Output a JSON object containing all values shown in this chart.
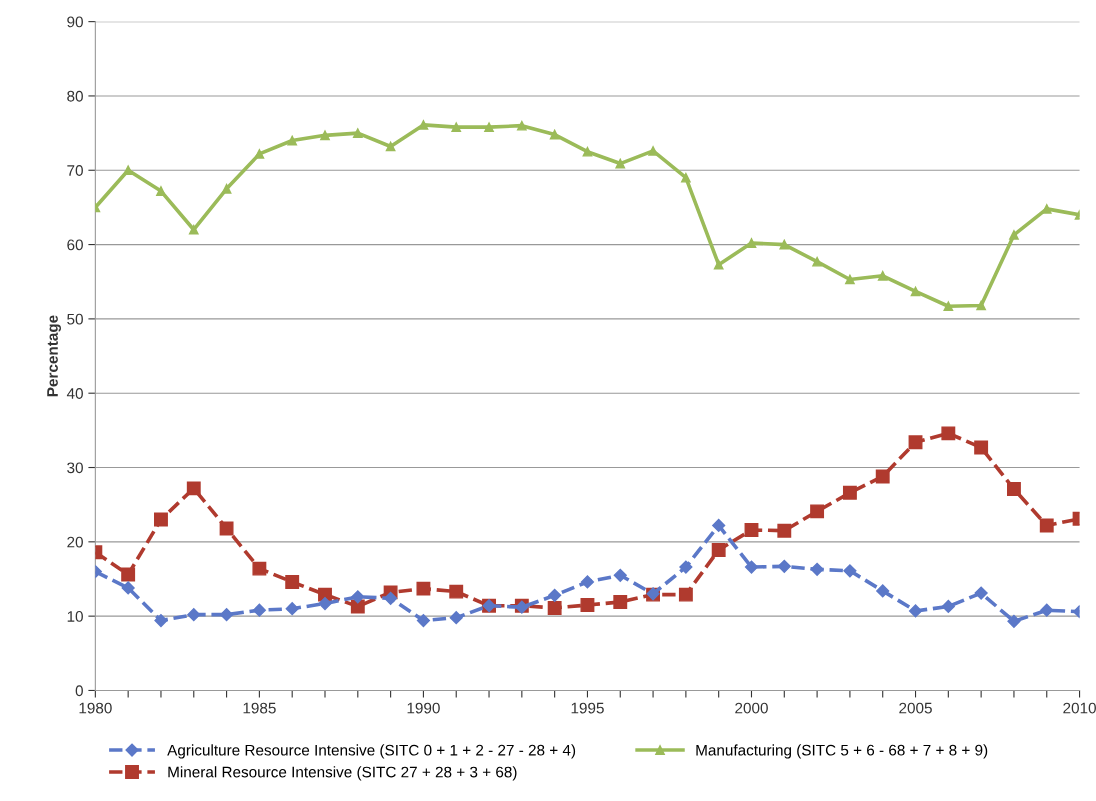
{
  "chart_data": {
    "type": "line",
    "ylabel": "Percentage",
    "x": [
      1980,
      1981,
      1982,
      1983,
      1984,
      1985,
      1986,
      1987,
      1988,
      1989,
      1990,
      1991,
      1992,
      1993,
      1994,
      1995,
      1996,
      1997,
      1998,
      1999,
      2000,
      2001,
      2002,
      2003,
      2004,
      2005,
      2006,
      2007,
      2008,
      2009,
      2010
    ],
    "series": [
      {
        "name": "Agriculture Resource Intensive (SITC 0 + 1 + 2 - 27 - 28 + 4)",
        "color": "#5b78c8",
        "marker": "diamond",
        "line_style": "dashed",
        "values": [
          16,
          13.8,
          9.4,
          10.2,
          10.2,
          10.8,
          11,
          11.7,
          12.6,
          12.4,
          9.4,
          9.8,
          11.4,
          11.2,
          12.8,
          14.6,
          15.5,
          13,
          16.6,
          22.2,
          16.6,
          16.7,
          16.3,
          16.1,
          13.4,
          10.7,
          11.3,
          13.1,
          9.3,
          10.8,
          10.6
        ]
      },
      {
        "name": "Mineral Resource Intensive (SITC 27 + 28 + 3 + 68)",
        "color": "#b03a2e",
        "marker": "square",
        "line_style": "dashed",
        "values": [
          18.6,
          15.6,
          23,
          27.2,
          21.8,
          16.4,
          14.6,
          12.9,
          11.3,
          13.2,
          13.7,
          13.3,
          11.4,
          11.4,
          11.1,
          11.5,
          11.9,
          12.9,
          12.9,
          18.9,
          21.6,
          21.5,
          24.1,
          26.6,
          28.8,
          33.4,
          34.6,
          32.7,
          27.1,
          22.2,
          23.1
        ]
      },
      {
        "name": "Manufacturing (SITC 5 + 6 - 68 + 7 + 8 + 9)",
        "color": "#9bbb59",
        "marker": "triangle",
        "line_style": "solid",
        "values": [
          65,
          70,
          67.2,
          62,
          67.5,
          72.2,
          74,
          74.7,
          75,
          73.2,
          76.1,
          75.8,
          75.8,
          76,
          74.8,
          72.5,
          70.9,
          72.6,
          69,
          57.3,
          60.2,
          60,
          57.7,
          55.3,
          55.8,
          53.7,
          51.7,
          51.8,
          61.3,
          64.8,
          64
        ]
      }
    ],
    "xlim": [
      1980,
      2010
    ],
    "xticks": [
      1980,
      {
        "value": 1981,
        "label": null
      },
      {
        "value": 1982,
        "label": null
      },
      {
        "value": 1983,
        "label": null
      },
      {
        "value": 1984,
        "label": null
      },
      1985,
      {
        "value": 1986,
        "label": null
      },
      {
        "value": 1987,
        "label": null
      },
      {
        "value": 1988,
        "label": null
      },
      {
        "value": 1989,
        "label": null
      },
      1990,
      {
        "value": 1991,
        "label": null
      },
      {
        "value": 1992,
        "label": null
      },
      {
        "value": 1993,
        "label": null
      },
      {
        "value": 1994,
        "label": null
      },
      1995,
      {
        "value": 1996,
        "label": null
      },
      {
        "value": 1997,
        "label": null
      },
      {
        "value": 1998,
        "label": null
      },
      {
        "value": 1999,
        "label": null
      },
      2000,
      {
        "value": 2001,
        "label": null
      },
      {
        "value": 2002,
        "label": null
      },
      {
        "value": 2003,
        "label": null
      },
      {
        "value": 2004,
        "label": null
      },
      2005,
      {
        "value": 2006,
        "label": null
      },
      {
        "value": 2007,
        "label": null
      },
      {
        "value": 2008,
        "label": null
      },
      {
        "value": 2009,
        "label": null
      },
      2010
    ],
    "ylim": [
      0,
      90
    ],
    "yticks": [
      0,
      10,
      20,
      30,
      40,
      50,
      60,
      70,
      80,
      90
    ],
    "grid": "y",
    "legend": "bottom"
  }
}
